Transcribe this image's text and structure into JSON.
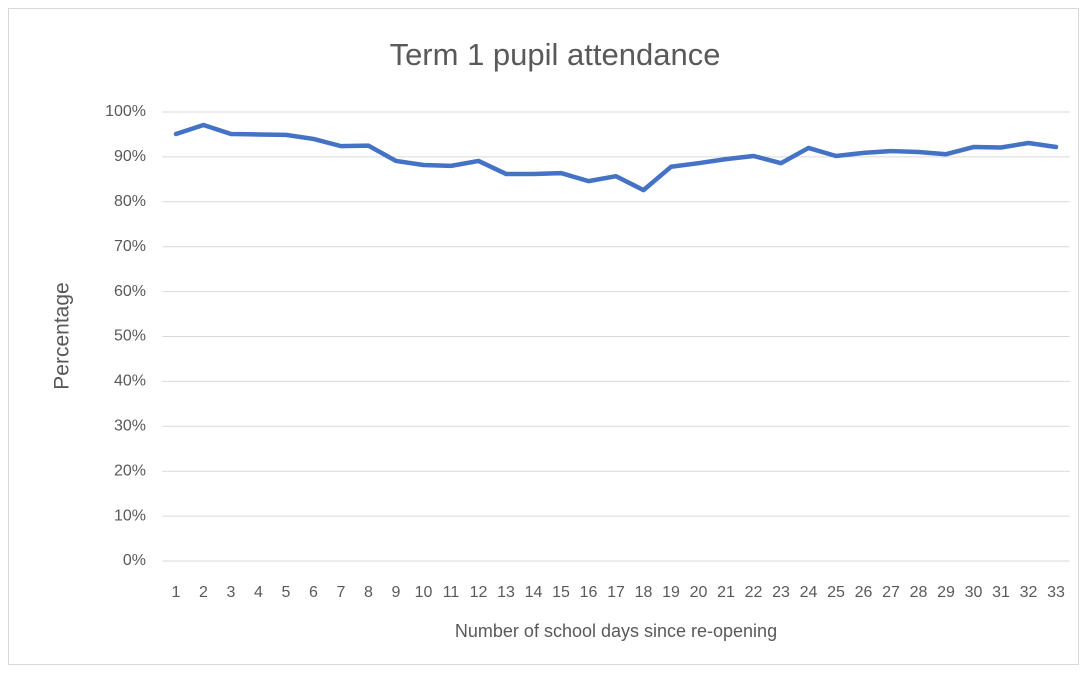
{
  "chart_data": {
    "type": "line",
    "title": "Term 1 pupil attendance",
    "x_label": "Number of school days since re-opening",
    "y_label": "Percentage",
    "categories": [
      "1",
      "2",
      "3",
      "4",
      "5",
      "6",
      "7",
      "8",
      "9",
      "10",
      "11",
      "12",
      "13",
      "14",
      "15",
      "16",
      "17",
      "18",
      "19",
      "20",
      "21",
      "22",
      "23",
      "24",
      "25",
      "26",
      "27",
      "28",
      "29",
      "30",
      "31",
      "32",
      "33"
    ],
    "series": [
      {
        "name": "Attendance",
        "color": "#4472c4",
        "values": [
          95.1,
          97.1,
          95.1,
          95,
          94.9,
          94,
          92.4,
          92.5,
          89.1,
          88.2,
          88,
          89.1,
          86.2,
          86.2,
          86.4,
          84.6,
          85.7,
          82.6,
          87.8,
          88.6,
          89.5,
          90.2,
          88.6,
          92,
          90.2,
          90.9,
          91.3,
          91.1,
          90.6,
          92.2,
          92.1,
          93.1,
          92.2
        ]
      }
    ],
    "ylim": [
      0,
      100
    ],
    "yticks": [
      {
        "value": 0,
        "label": "0%"
      },
      {
        "value": 10,
        "label": "10%"
      },
      {
        "value": 20,
        "label": "20%"
      },
      {
        "value": 30,
        "label": "30%"
      },
      {
        "value": 40,
        "label": "40%"
      },
      {
        "value": 50,
        "label": "50%"
      },
      {
        "value": 60,
        "label": "60%"
      },
      {
        "value": 70,
        "label": "70%"
      },
      {
        "value": 80,
        "label": "80%"
      },
      {
        "value": 90,
        "label": "90%"
      },
      {
        "value": 100,
        "label": "100%"
      }
    ],
    "grid": true
  }
}
